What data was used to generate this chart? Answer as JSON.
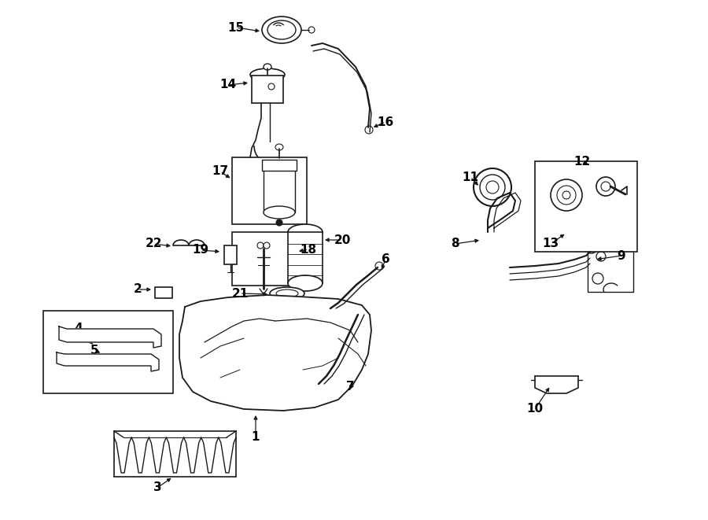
{
  "bg_color": "#ffffff",
  "line_color": "#1a1a1a",
  "text_color": "#000000",
  "fig_width": 9.0,
  "fig_height": 6.61,
  "dpi": 100,
  "number_fontsize": 11,
  "lw": 1.0
}
